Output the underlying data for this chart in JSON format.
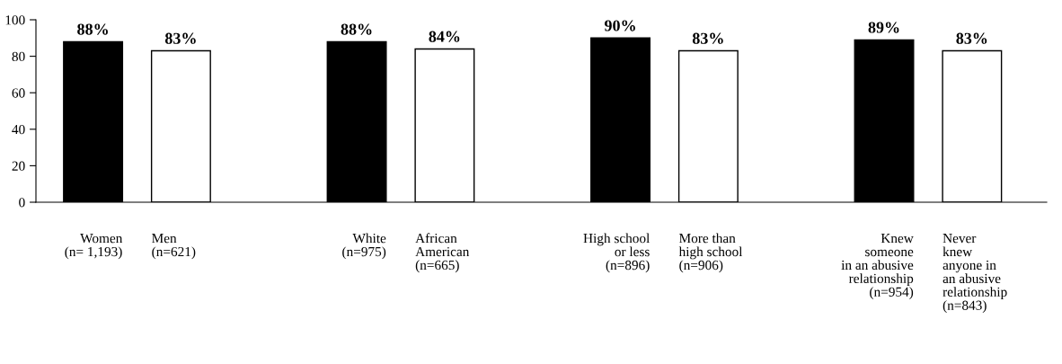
{
  "chart_data": {
    "type": "bar",
    "categories": [
      "Women\n(n= 1,193)",
      "Men\n(n=621)",
      null,
      "White\n(n=975)",
      "African\nAmerican\n(n=665)",
      null,
      "High school\nor less\n(n=896)",
      "More than\nhigh school\n(n=906)",
      null,
      "Knew\nsomeone\nin an abusive\nrelationship\n(n=954)",
      "Never\nknew\nanyone in\nan abusive\nrelationship\n(n=843)"
    ],
    "values": [
      88,
      83,
      null,
      88,
      84,
      null,
      90,
      83,
      null,
      89,
      83
    ],
    "colors": [
      "#000000",
      "#ffffff",
      null,
      "#000000",
      "#ffffff",
      null,
      "#000000",
      "#ffffff",
      null,
      "#000000",
      "#ffffff"
    ],
    "value_labels": [
      "88%",
      "83%",
      null,
      "88%",
      "84%",
      null,
      "90%",
      "83%",
      null,
      "89%",
      "83%"
    ],
    "ylim": [
      0,
      100
    ],
    "yticks": [
      0,
      20,
      40,
      60,
      80,
      100
    ]
  }
}
